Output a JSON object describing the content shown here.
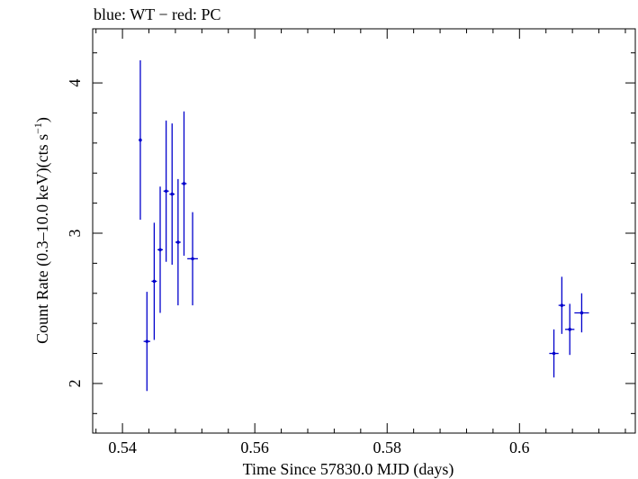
{
  "chart_data": {
    "type": "scatter",
    "title": "blue: WT − red: PC",
    "xlabel": "Time Since 57830.0 MJD (days)",
    "ylabel_main": "Count Rate (0.3–10.0 keV)(cts s",
    "ylabel_sup": "−1",
    "ylabel_end": ")",
    "xlim": [
      0.5355,
      0.6175
    ],
    "ylim": [
      1.67,
      4.36
    ],
    "xticks": [
      0.54,
      0.56,
      0.58,
      0.6
    ],
    "xtick_labels": [
      "0.54",
      "0.56",
      "0.58",
      "0.6"
    ],
    "yticks": [
      2,
      3,
      4
    ],
    "ytick_labels": [
      "2",
      "3",
      "4"
    ],
    "grid": false,
    "series": [
      {
        "name": "WT",
        "color": "#0000cc",
        "points": [
          {
            "x": 0.5427,
            "y": 3.62,
            "xerr": 0.0002,
            "yerr_lo": 0.53,
            "yerr_hi": 0.53
          },
          {
            "x": 0.5437,
            "y": 2.28,
            "xerr": 0.0005,
            "yerr_lo": 0.33,
            "yerr_hi": 0.33
          },
          {
            "x": 0.5448,
            "y": 2.68,
            "xerr": 0.0004,
            "yerr_lo": 0.39,
            "yerr_hi": 0.39
          },
          {
            "x": 0.5457,
            "y": 2.89,
            "xerr": 0.0004,
            "yerr_lo": 0.42,
            "yerr_hi": 0.42
          },
          {
            "x": 0.5466,
            "y": 3.28,
            "xerr": 0.0004,
            "yerr_lo": 0.47,
            "yerr_hi": 0.47
          },
          {
            "x": 0.5475,
            "y": 3.26,
            "xerr": 0.0004,
            "yerr_lo": 0.47,
            "yerr_hi": 0.47
          },
          {
            "x": 0.5484,
            "y": 2.94,
            "xerr": 0.0004,
            "yerr_lo": 0.42,
            "yerr_hi": 0.42
          },
          {
            "x": 0.5493,
            "y": 3.33,
            "xerr": 0.0004,
            "yerr_lo": 0.48,
            "yerr_hi": 0.48
          },
          {
            "x": 0.5506,
            "y": 2.83,
            "xerr": 0.0008,
            "yerr_lo": 0.31,
            "yerr_hi": 0.31
          },
          {
            "x": 0.6052,
            "y": 2.2,
            "xerr": 0.0007,
            "yerr_lo": 0.16,
            "yerr_hi": 0.16
          },
          {
            "x": 0.6064,
            "y": 2.52,
            "xerr": 0.0005,
            "yerr_lo": 0.19,
            "yerr_hi": 0.19
          },
          {
            "x": 0.6076,
            "y": 2.36,
            "xerr": 0.0007,
            "yerr_lo": 0.17,
            "yerr_hi": 0.17
          },
          {
            "x": 0.6094,
            "y": 2.47,
            "xerr": 0.0011,
            "yerr_lo": 0.13,
            "yerr_hi": 0.13
          }
        ]
      }
    ]
  }
}
